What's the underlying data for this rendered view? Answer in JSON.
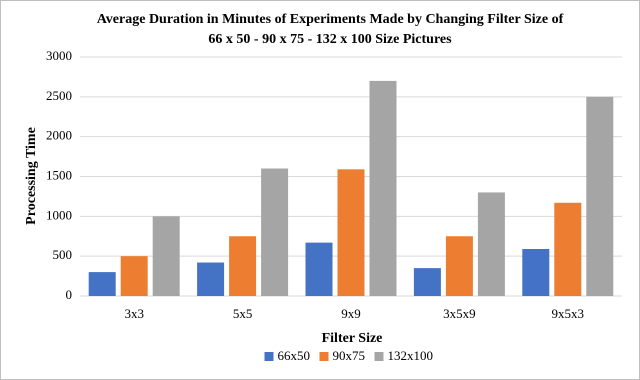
{
  "chart_data": {
    "type": "bar",
    "title": [
      "Average Duration in Minutes of Experiments Made by Changing Filter Size of",
      "66 x 50 - 90 x 75 - 132 x 100 Size Pictures"
    ],
    "x_label": "Filter Size",
    "y_label": "Processing Time",
    "categories": [
      "3x3",
      "5x5",
      "9x9",
      "3x5x9",
      "9x5x3"
    ],
    "series": [
      {
        "name": "66x50",
        "color": "#4472c4",
        "values": [
          300,
          420,
          670,
          350,
          590
        ]
      },
      {
        "name": "90x75",
        "color": "#ed7d31",
        "values": [
          500,
          750,
          1590,
          750,
          1170
        ]
      },
      {
        "name": "132x100",
        "color": "#a5a5a5",
        "values": [
          1000,
          1600,
          2700,
          1300,
          2500
        ]
      }
    ],
    "ylim": [
      0,
      3000
    ],
    "yticks": [
      0,
      500,
      1000,
      1500,
      2000,
      2500,
      3000
    ],
    "grid": true,
    "legend": "bottom"
  }
}
